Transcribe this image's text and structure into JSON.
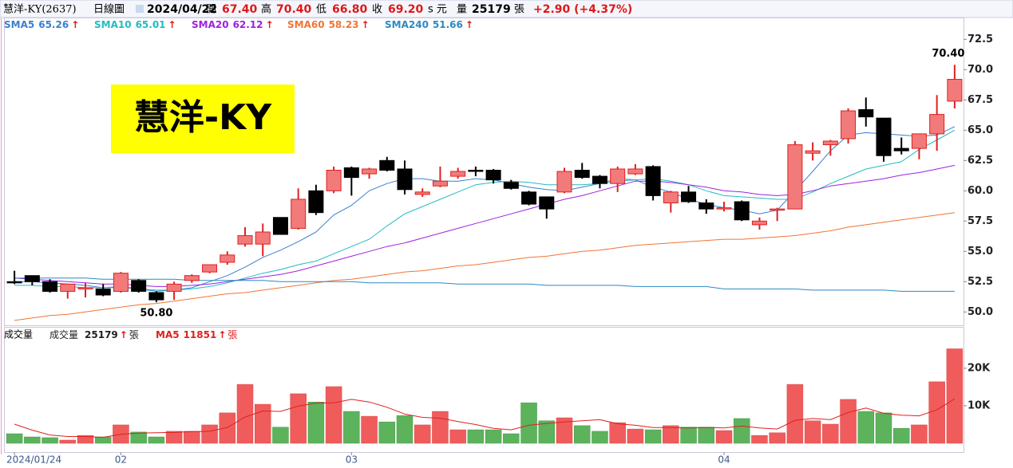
{
  "header": {
    "name": "慧洋-KY(2637)",
    "period": "日線圖",
    "date": "2024/04/22",
    "open_label": "開",
    "open": "67.40",
    "high_label": "高",
    "high": "70.40",
    "low_label": "低",
    "low": "66.80",
    "close_label": "收",
    "close": "69.20",
    "currency": "s 元",
    "volume_label": "量",
    "volume": "25179",
    "volume_unit": "張",
    "change": "+2.90 (+4.37%)"
  },
  "chart_data": [
    {
      "type": "candlestick",
      "title": "慧洋-KY",
      "trend_mark": "↑",
      "up_color": "#f27a7a",
      "up_edge": "#e02020",
      "down_color": "#000000",
      "categories": [
        "2024/01/24",
        null,
        null,
        null,
        null,
        null,
        "02",
        null,
        null,
        null,
        null,
        null,
        null,
        null,
        null,
        null,
        null,
        null,
        null,
        "03",
        null,
        null,
        null,
        null,
        null,
        null,
        null,
        null,
        null,
        null,
        null,
        null,
        null,
        null,
        null,
        null,
        null,
        null,
        null,
        null,
        "04",
        null,
        null,
        null,
        null,
        null,
        null,
        null,
        null,
        null,
        null,
        null,
        null,
        null
      ],
      "open": [
        52.5,
        53.0,
        52.5,
        51.7,
        52.0,
        51.9,
        51.7,
        52.6,
        51.6,
        51.7,
        52.6,
        53.3,
        54.1,
        55.6,
        55.6,
        57.8,
        56.9,
        60.0,
        60.0,
        61.9,
        61.4,
        62.5,
        61.8,
        59.7,
        60.4,
        61.2,
        61.7,
        61.7,
        60.7,
        59.9,
        59.5,
        59.9,
        61.7,
        61.2,
        60.6,
        61.4,
        62.0,
        59.0,
        59.9,
        59.0,
        58.5,
        59.1,
        57.2,
        58.4,
        58.5,
        63.1,
        63.8,
        64.3,
        66.7,
        66.0,
        63.5,
        63.5,
        64.7,
        67.4
      ],
      "high": [
        53.4,
        53.0,
        52.7,
        52.3,
        52.4,
        52.3,
        53.3,
        52.7,
        51.7,
        52.5,
        53.1,
        53.9,
        55.0,
        57.0,
        57.3,
        57.8,
        60.2,
        60.5,
        62.0,
        62.0,
        61.9,
        62.8,
        62.5,
        60.2,
        62.0,
        61.9,
        62.0,
        61.8,
        60.9,
        60.0,
        59.5,
        61.9,
        62.3,
        61.3,
        62.0,
        62.2,
        62.1,
        60.0,
        60.4,
        59.3,
        59.1,
        59.2,
        57.8,
        58.6,
        64.1,
        64.0,
        64.2,
        66.8,
        67.7,
        66.0,
        64.4,
        64.7,
        67.9,
        70.4
      ],
      "low": [
        52.3,
        52.2,
        51.6,
        51.1,
        51.2,
        51.3,
        51.6,
        51.6,
        50.8,
        51.0,
        52.4,
        53.2,
        53.9,
        55.4,
        54.6,
        56.4,
        56.8,
        58.0,
        59.8,
        59.6,
        61.0,
        61.6,
        59.7,
        59.5,
        60.3,
        61.0,
        61.2,
        60.6,
        60.1,
        58.8,
        57.7,
        59.8,
        61.0,
        60.2,
        59.9,
        61.3,
        59.2,
        58.2,
        59.0,
        58.1,
        58.3,
        57.5,
        56.8,
        57.5,
        58.5,
        62.5,
        62.9,
        63.9,
        65.3,
        62.4,
        63.0,
        62.6,
        63.3,
        66.8
      ],
      "close": [
        52.4,
        52.5,
        51.7,
        52.3,
        52.0,
        51.4,
        53.2,
        51.7,
        51.0,
        52.3,
        53.0,
        53.9,
        54.7,
        56.3,
        56.6,
        56.4,
        59.3,
        58.2,
        61.7,
        61.1,
        61.8,
        61.7,
        60.1,
        59.9,
        60.8,
        61.6,
        61.6,
        60.9,
        60.2,
        58.9,
        58.5,
        61.6,
        61.1,
        60.6,
        61.8,
        61.8,
        59.6,
        59.9,
        59.1,
        58.5,
        58.6,
        57.6,
        57.5,
        58.5,
        63.8,
        63.3,
        64.1,
        66.6,
        66.1,
        62.9,
        63.3,
        64.7,
        66.3,
        69.2
      ],
      "high_label": "70.40",
      "low_label": "50.80",
      "series": [
        {
          "name": "SMA5",
          "value_label": "65.26",
          "color": "#3a7fcf",
          "values": [
            52.5,
            52.5,
            52.4,
            52.3,
            52.2,
            52.0,
            52.1,
            51.9,
            51.7,
            51.8,
            52.0,
            52.5,
            53.0,
            53.7,
            54.5,
            55.1,
            55.8,
            56.6,
            58.0,
            58.8,
            60.0,
            60.6,
            61.0,
            61.0,
            60.8,
            60.8,
            61.0,
            60.9,
            60.6,
            60.3,
            60.1,
            60.0,
            60.3,
            60.6,
            61.0,
            60.9,
            60.3,
            59.9,
            59.3,
            58.9,
            58.6,
            58.4,
            58.1,
            58.4,
            60.0,
            61.6,
            63.3,
            64.6,
            64.8,
            64.7,
            64.6,
            64.5,
            64.6,
            65.3
          ]
        },
        {
          "name": "SMA10",
          "value_label": "65.01",
          "color": "#22bcc0",
          "values": [
            52.2,
            52.2,
            52.1,
            52.1,
            52.0,
            52.0,
            52.0,
            51.9,
            51.8,
            51.8,
            51.9,
            52.1,
            52.4,
            52.8,
            53.2,
            53.5,
            53.9,
            54.2,
            54.8,
            55.4,
            56.0,
            57.1,
            58.1,
            58.7,
            59.3,
            59.9,
            60.5,
            60.7,
            60.8,
            60.7,
            60.5,
            60.5,
            60.5,
            60.6,
            60.8,
            60.9,
            61.0,
            60.8,
            60.5,
            60.0,
            59.6,
            59.5,
            59.4,
            59.3,
            59.3,
            59.9,
            60.6,
            61.2,
            61.8,
            62.1,
            62.4,
            63.4,
            64.2,
            65.0
          ]
        },
        {
          "name": "SMA20",
          "value_label": "62.12",
          "color": "#a020e0",
          "values": [
            52.8,
            52.7,
            52.6,
            52.5,
            52.4,
            52.3,
            52.3,
            52.2,
            52.1,
            52.1,
            52.2,
            52.3,
            52.5,
            52.7,
            52.9,
            53.1,
            53.4,
            53.8,
            54.2,
            54.6,
            55.0,
            55.4,
            55.7,
            56.1,
            56.5,
            56.9,
            57.3,
            57.7,
            58.1,
            58.5,
            58.9,
            59.3,
            59.6,
            60.0,
            60.4,
            60.8,
            60.8,
            60.7,
            60.5,
            60.3,
            60.0,
            59.9,
            59.7,
            59.6,
            59.7,
            60.0,
            60.4,
            60.6,
            60.8,
            61.0,
            61.3,
            61.5,
            61.8,
            62.1
          ]
        },
        {
          "name": "SMA60",
          "value_label": "58.23",
          "color": "#f07535",
          "values": [
            49.3,
            49.5,
            49.7,
            49.8,
            50.0,
            50.2,
            50.4,
            50.6,
            50.7,
            50.9,
            51.1,
            51.3,
            51.5,
            51.6,
            51.8,
            52.0,
            52.2,
            52.4,
            52.6,
            52.7,
            52.9,
            53.1,
            53.3,
            53.4,
            53.6,
            53.8,
            53.9,
            54.1,
            54.3,
            54.5,
            54.6,
            54.8,
            55.0,
            55.1,
            55.3,
            55.5,
            55.6,
            55.7,
            55.8,
            55.9,
            56.0,
            56.0,
            56.1,
            56.2,
            56.3,
            56.5,
            56.7,
            57.0,
            57.2,
            57.4,
            57.6,
            57.8,
            58.0,
            58.2
          ]
        },
        {
          "name": "SMA240",
          "value_label": "51.66",
          "color": "#2a8ac4",
          "values": [
            52.8,
            52.8,
            52.8,
            52.8,
            52.8,
            52.7,
            52.7,
            52.7,
            52.7,
            52.7,
            52.6,
            52.6,
            52.6,
            52.6,
            52.6,
            52.5,
            52.5,
            52.5,
            52.5,
            52.5,
            52.4,
            52.4,
            52.4,
            52.4,
            52.4,
            52.3,
            52.3,
            52.3,
            52.3,
            52.3,
            52.2,
            52.2,
            52.2,
            52.2,
            52.2,
            52.1,
            52.1,
            52.1,
            52.1,
            52.1,
            51.9,
            51.9,
            51.9,
            51.9,
            51.9,
            51.8,
            51.8,
            51.8,
            51.8,
            51.8,
            51.7,
            51.7,
            51.7,
            51.7
          ]
        }
      ],
      "ylim": [
        48.9,
        74.3
      ],
      "yticks": [
        {
          "value": 50,
          "label": "50.0"
        },
        52.5,
        {
          "value": 55,
          "label": "55.0"
        },
        57.5,
        {
          "value": 60,
          "label": "60.0"
        },
        62.5,
        {
          "value": 65,
          "label": "65.0"
        },
        67.5,
        {
          "value": 70,
          "label": "70.0"
        },
        72.5
      ]
    },
    {
      "type": "bar",
      "title": "成交量",
      "value_label": "25179",
      "unit": "張",
      "up_color": "#f05c5c",
      "down_color": "#5cb35c",
      "values": [
        2550,
        1700,
        1500,
        850,
        2100,
        1700,
        4900,
        3000,
        1700,
        3200,
        3200,
        4900,
        8100,
        15700,
        10400,
        4300,
        13200,
        11000,
        15100,
        8500,
        7200,
        5700,
        7400,
        4900,
        8500,
        3600,
        3600,
        3600,
        2550,
        10800,
        6000,
        6800,
        4700,
        3200,
        5500,
        3800,
        3600,
        4700,
        4300,
        4300,
        3400,
        6600,
        2100,
        2800,
        15700,
        6000,
        5100,
        11700,
        8500,
        8100,
        4000,
        4900,
        16400,
        25179
      ],
      "series": [
        {
          "name": "MA5",
          "value_label": "11851",
          "color": "#e02020",
          "values": [
            5100,
            3500,
            2200,
            1800,
            1800,
            1600,
            2400,
            2700,
            2800,
            2900,
            3100,
            3200,
            4200,
            7000,
            8600,
            8500,
            9900,
            10700,
            10800,
            11700,
            11000,
            9600,
            7800,
            6900,
            6700,
            5800,
            5000,
            4000,
            3600,
            4800,
            5300,
            5700,
            6000,
            6300,
            5200,
            4800,
            4200,
            4200,
            4100,
            4200,
            4100,
            4600,
            4100,
            3800,
            6100,
            6600,
            6300,
            8200,
            9400,
            8000,
            7500,
            7300,
            8900,
            11851
          ]
        }
      ],
      "ylim": [
        0,
        30600
      ],
      "yticks": [
        {
          "value": 10000,
          "label": "10K"
        },
        {
          "value": 20000,
          "label": "20K"
        }
      ]
    }
  ]
}
